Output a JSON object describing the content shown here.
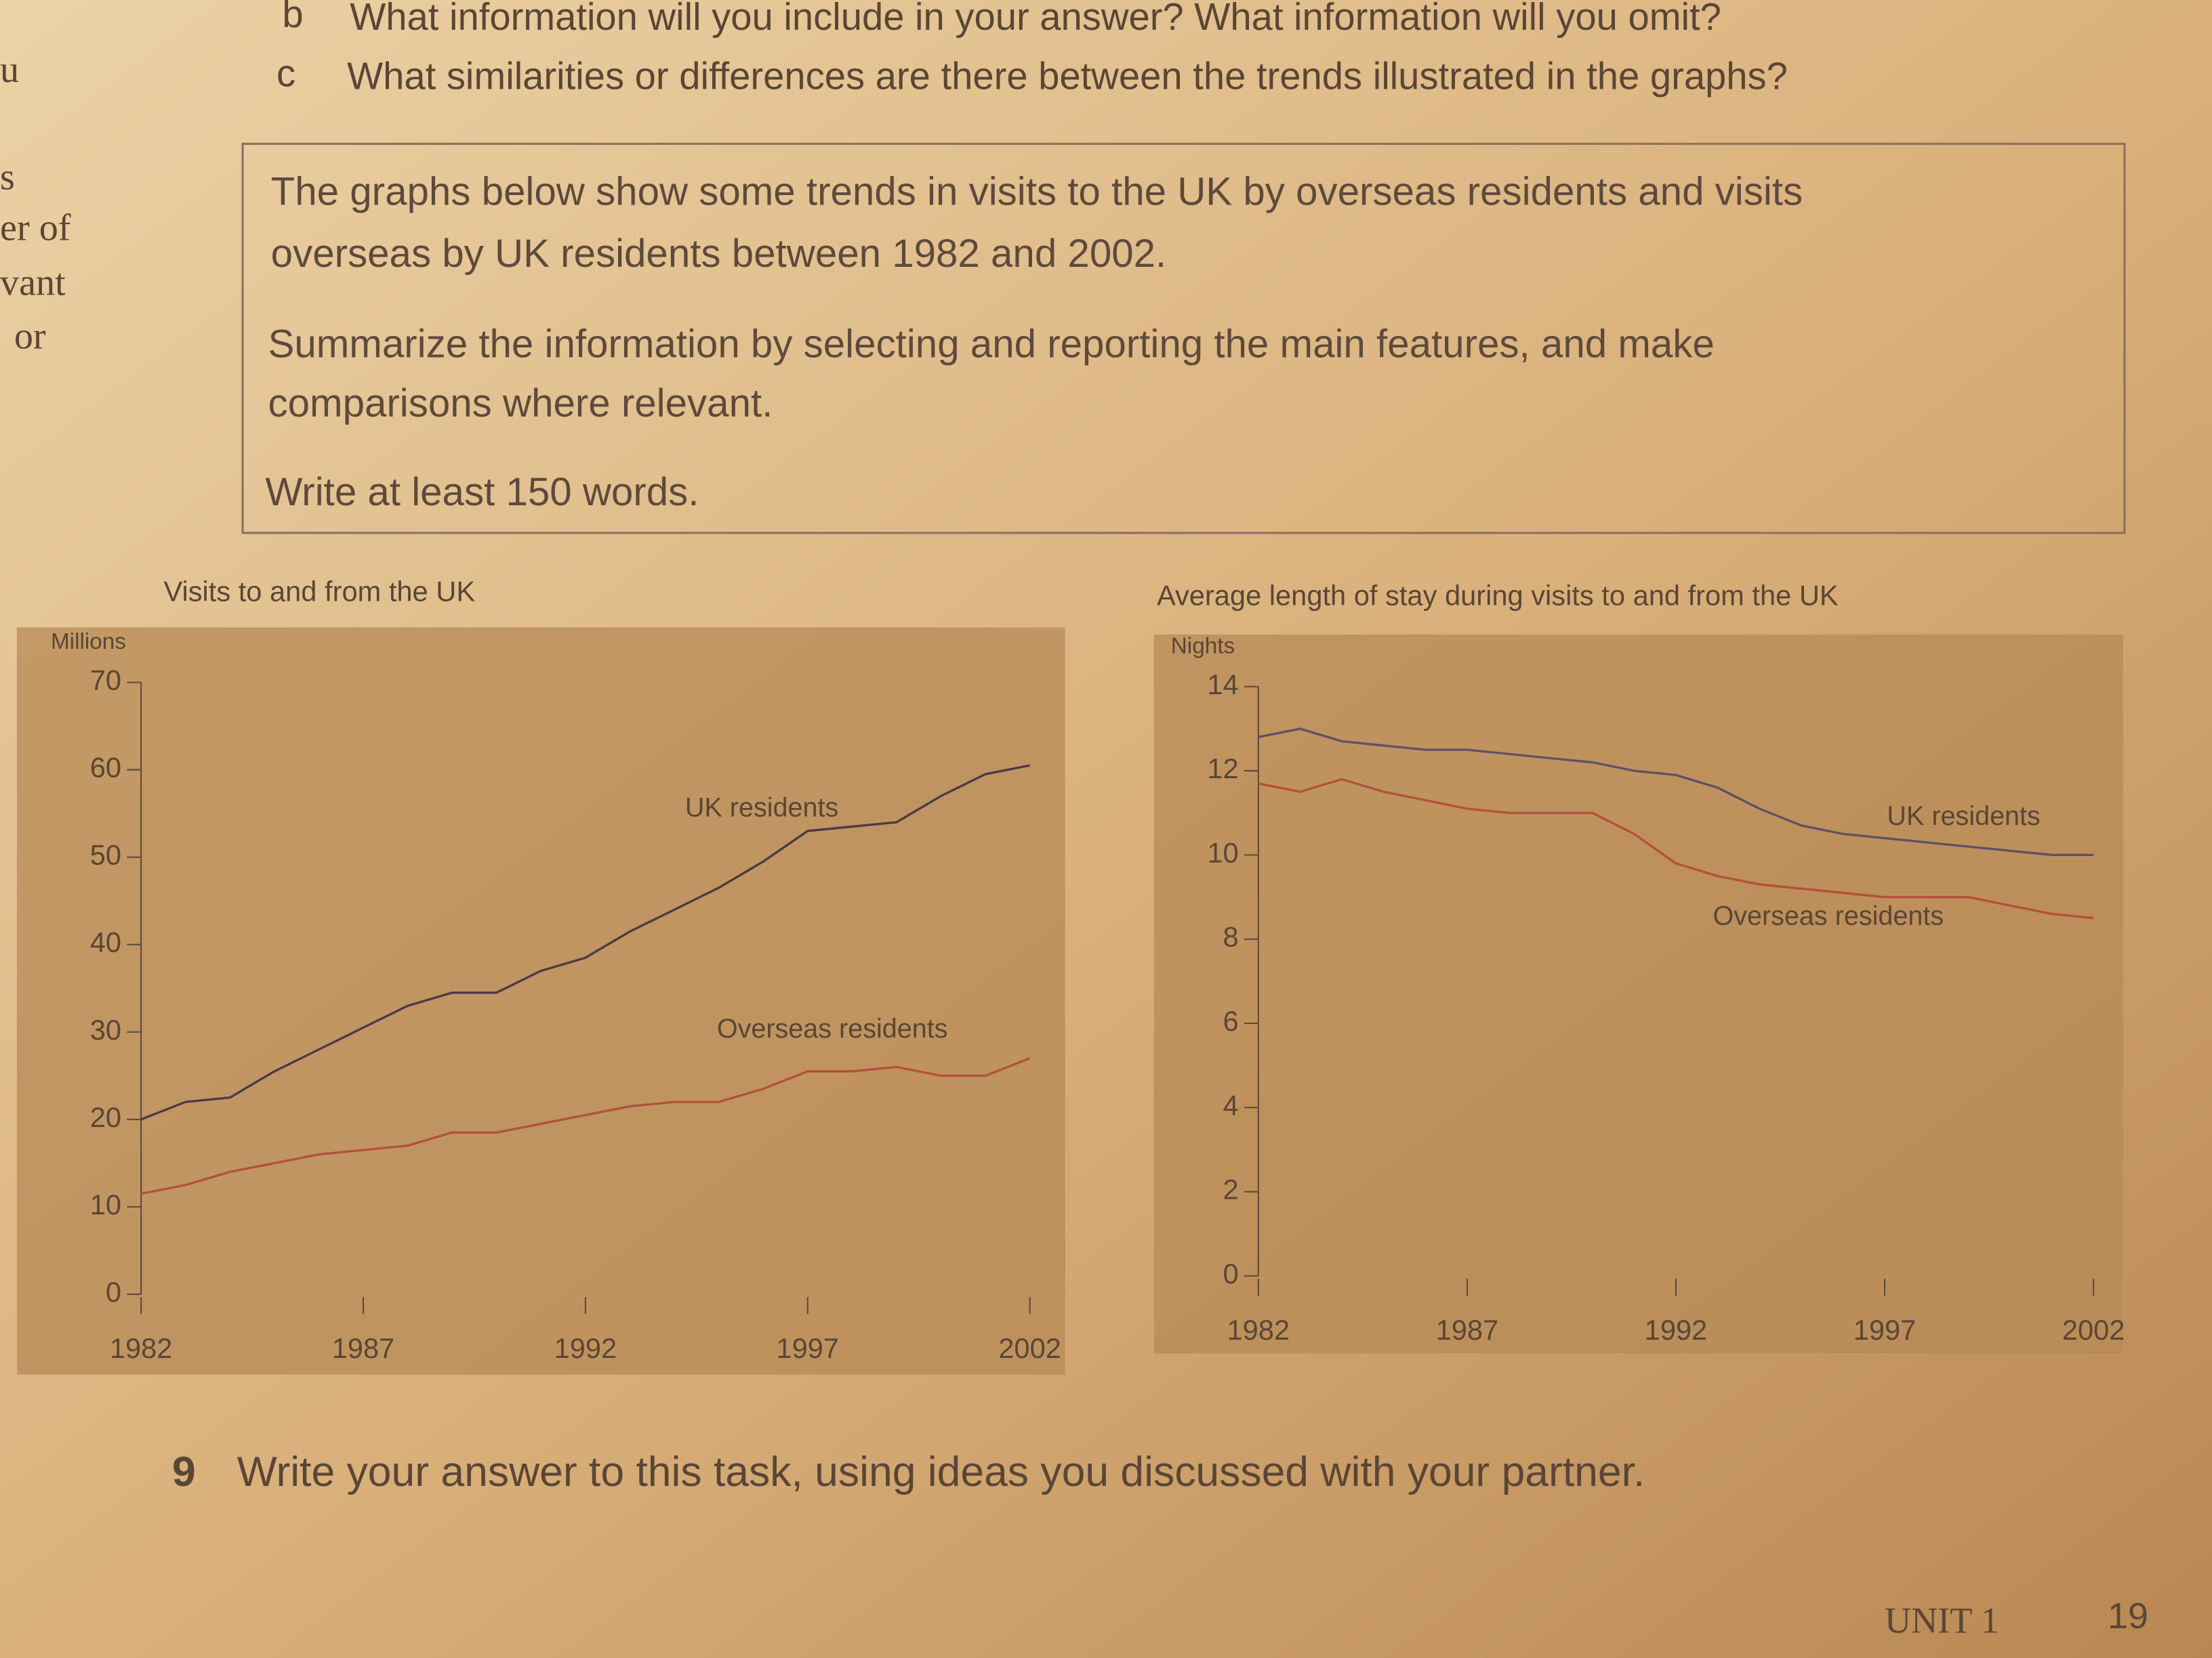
{
  "page": {
    "question_b_letter": "b",
    "question_b": "What information will you include in your answer? What information will you omit?",
    "question_c_letter": "c",
    "question_c": "What similarities or differences are there between the trends illustrated in the graphs?",
    "task_line_1": "The graphs below show some trends in visits to the UK by overseas residents and visits",
    "task_line_2": "overseas by UK residents between 1982 and 2002.",
    "task_line_3": "Summarize the information by selecting and reporting the main features, and make",
    "task_line_4": "comparisons where relevant.",
    "task_line_5": "Write at least 150 words.",
    "exercise_number": "9",
    "exercise_text": "Write your answer to this task, using ideas you discussed with your partner.",
    "unit": "UNIT 1",
    "page_number": "19",
    "margin_fragments": [
      "u",
      "s",
      "er of",
      "vant",
      "or"
    ]
  },
  "chart_data": [
    {
      "type": "line",
      "title": "Visits to and from the UK",
      "y_label": "Millions",
      "x": [
        1982,
        1983,
        1984,
        1985,
        1986,
        1987,
        1988,
        1989,
        1990,
        1991,
        1992,
        1993,
        1994,
        1995,
        1996,
        1997,
        1998,
        1999,
        2000,
        2001,
        2002
      ],
      "series": [
        {
          "name": "UK residents",
          "color": "#4a3a44",
          "values": [
            20,
            22,
            22.5,
            25.5,
            28,
            30.5,
            33,
            34.5,
            34.5,
            37,
            38.5,
            41.5,
            44,
            46.5,
            49.5,
            53,
            53.5,
            54,
            57,
            59.5,
            60.5
          ]
        },
        {
          "name": "Overseas residents",
          "color": "#b4503c",
          "values": [
            11.5,
            12.5,
            14,
            15,
            16,
            16.5,
            17,
            18.5,
            18.5,
            19.5,
            20.5,
            21.5,
            22,
            22,
            23.5,
            25.5,
            25.5,
            26,
            25,
            25,
            27
          ]
        }
      ],
      "xlim": [
        1982,
        2002
      ],
      "xticks": [
        1982,
        1987,
        1992,
        1997,
        2002
      ],
      "ylim": [
        0,
        70
      ],
      "yticks": [
        0,
        10,
        20,
        30,
        40,
        50,
        60,
        70
      ],
      "grid": false
    },
    {
      "type": "line",
      "title": "Average length of stay during visits to and from the UK",
      "y_label": "Nights",
      "x": [
        1982,
        1983,
        1984,
        1985,
        1986,
        1987,
        1988,
        1989,
        1990,
        1991,
        1992,
        1993,
        1994,
        1995,
        1996,
        1997,
        1998,
        1999,
        2000,
        2001,
        2002
      ],
      "series": [
        {
          "name": "UK residents",
          "color": "#5e5068",
          "values": [
            12.8,
            13,
            12.7,
            12.6,
            12.5,
            12.5,
            12.4,
            12.3,
            12.2,
            12,
            11.9,
            11.6,
            11.1,
            10.7,
            10.5,
            10.4,
            10.3,
            10.2,
            10.1,
            10,
            10
          ]
        },
        {
          "name": "Overseas residents",
          "color": "#b4503c",
          "values": [
            11.7,
            11.5,
            11.8,
            11.5,
            11.3,
            11.1,
            11,
            11,
            11,
            10.5,
            9.8,
            9.5,
            9.3,
            9.2,
            9.1,
            9,
            9,
            9,
            8.8,
            8.6,
            8.5
          ]
        }
      ],
      "xlim": [
        1982,
        2002
      ],
      "xticks": [
        1982,
        1987,
        1992,
        1997,
        2002
      ],
      "ylim": [
        0,
        14
      ],
      "yticks": [
        0,
        2,
        4,
        6,
        8,
        10,
        12,
        14
      ],
      "grid": false
    }
  ]
}
